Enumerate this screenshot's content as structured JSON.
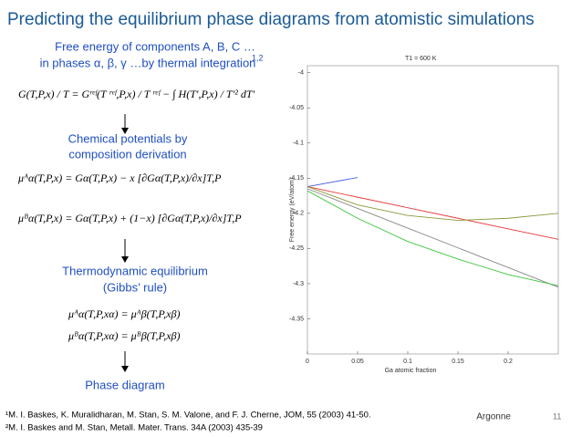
{
  "slide": {
    "title": "Predicting the equilibrium phase diagrams from atomistic simulations",
    "intro_line1": "Free energy of components A, B, C …",
    "intro_line2": "in phases α, β, γ …by thermal integration",
    "intro_refs": "1,2",
    "eq_free_energy": "G(T,P,x) / T  =  Gʳᵉᶠ(T ʳᵉᶠ,P,x) / T ʳᵉᶠ  −  ∫ H(T′,P,x) / T′² dT′",
    "step1_line1": "Chemical potentials by",
    "step1_line2": "composition derivation",
    "eq_mu_A": "μᴬα(T,P,x) = Gα(T,P,x) − x [∂Gα(T,P,x)/∂x]T,P",
    "eq_mu_B": "μᴮα(T,P,x) = Gα(T,P,x) + (1−x) [∂Gα(T,P,x)/∂x]T,P",
    "step2_line1": "Thermodynamic equilibrium",
    "step2_line2": "(Gibbs’ rule)",
    "eq_eqA": "μᴬα(T,P,xα) = μᴬβ(T,P,xβ)",
    "eq_eqB": "μᴮα(T,P,xα) = μᴮβ(T,P,xβ)",
    "step3": "Phase diagram",
    "ref1": "¹M. I. Baskes, K. Muralidharan, M. Stan, S. M. Valone, and F. J. Cherne, JOM, 55 (2003) 41-50.",
    "ref2": "²M. I. Baskes and M. Stan, Metall. Mater. Trans. 34A (2003) 435-39",
    "logo": "Argonne",
    "page": "11"
  },
  "chart_data": {
    "type": "line",
    "title": "T1 = 600   K",
    "x_label": "Ga atomic fraction",
    "y_label": "Free energy (eV/atom)",
    "x": [
      0,
      0.05,
      0.1,
      0.15,
      0.2,
      0.25
    ],
    "xlim": [
      0,
      0.25
    ],
    "xticks": [
      0,
      0.05,
      0.1,
      0.15,
      0.2
    ],
    "ylim": [
      -4.4,
      -3.99
    ],
    "yticks": [
      -4,
      -4.05,
      -4.1,
      -4.15,
      -4.2,
      -4.25,
      -4.3,
      -4.35
    ],
    "series": [
      {
        "color": "#4a5ee0",
        "values": [
          -4.162,
          -4.149,
          null,
          null,
          null,
          null
        ]
      },
      {
        "color": "#e83a3a",
        "values": [
          -4.162,
          -4.177,
          -4.192,
          -4.207,
          -4.222,
          -4.237
        ]
      },
      {
        "color": "#888888",
        "values": [
          -4.165,
          -4.193,
          -4.221,
          -4.249,
          -4.277,
          -4.305
        ]
      },
      {
        "color": "#3ec43e",
        "values": [
          -4.168,
          -4.207,
          -4.24,
          -4.265,
          -4.287,
          -4.303
        ]
      },
      {
        "color": "#8a9a3a",
        "values": [
          -4.162,
          -4.188,
          -4.203,
          -4.21,
          -4.207,
          -4.2
        ]
      }
    ]
  }
}
